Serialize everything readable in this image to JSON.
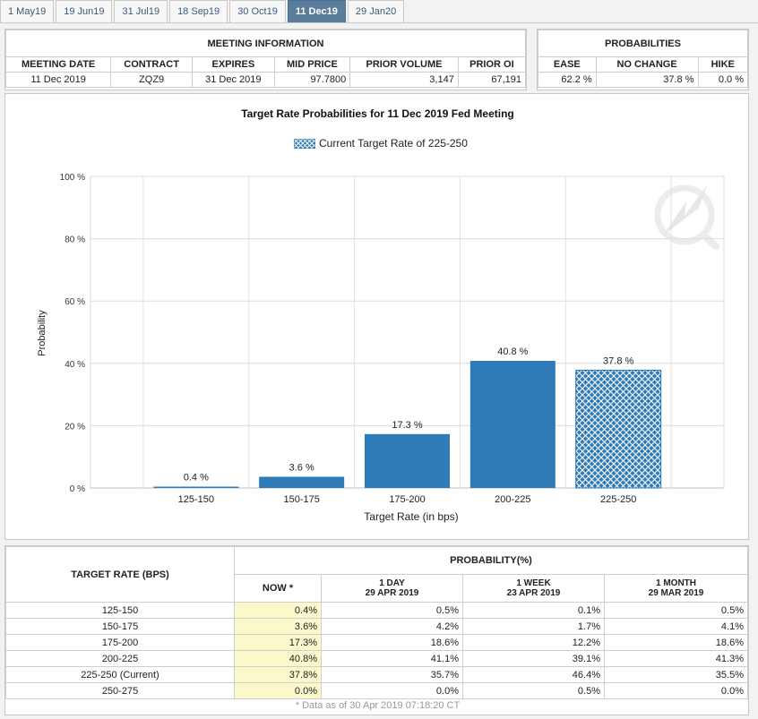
{
  "tabs": [
    "1 May19",
    "19 Jun19",
    "31 Jul19",
    "18 Sep19",
    "30 Oct19",
    "11 Dec19",
    "29 Jan20"
  ],
  "active_tab": "11 Dec19",
  "meeting_info": {
    "title": "MEETING INFORMATION",
    "headers": [
      "MEETING DATE",
      "CONTRACT",
      "EXPIRES",
      "MID PRICE",
      "PRIOR VOLUME",
      "PRIOR OI"
    ],
    "values": [
      "11 Dec 2019",
      "ZQZ9",
      "31 Dec 2019",
      "97.7800",
      "3,147",
      "67,191"
    ]
  },
  "probabilities": {
    "title": "PROBABILITIES",
    "headers": [
      "EASE",
      "NO CHANGE",
      "HIKE"
    ],
    "values": [
      "62.2 %",
      "37.8 %",
      "0.0 %"
    ]
  },
  "chart_data": {
    "type": "bar",
    "title": "Target Rate Probabilities for 11 Dec 2019 Fed Meeting",
    "legend": "Current Target Rate of 225-250",
    "xlabel": "Target Rate (in bps)",
    "ylabel": "Probability",
    "categories": [
      "125-150",
      "150-175",
      "175-200",
      "200-225",
      "225-250"
    ],
    "values": [
      0.4,
      3.6,
      17.3,
      40.8,
      37.8
    ],
    "labels": [
      "0.4 %",
      "3.6 %",
      "17.3 %",
      "40.8 %",
      "37.8 %"
    ],
    "ylim": [
      0,
      100
    ],
    "yticks": [
      "0 %",
      "20 %",
      "40 %",
      "60 %",
      "80 %",
      "100 %"
    ],
    "current_category": "225-250",
    "grid": true,
    "colors": {
      "bar": "#2f7bb8",
      "current": "#2f7bb8"
    }
  },
  "prob_table": {
    "title": "PROBABILITY(%)",
    "rate_header": "TARGET RATE (BPS)",
    "col_headers": [
      {
        "label": "NOW *",
        "sub": ""
      },
      {
        "label": "1 DAY",
        "sub": "29 APR 2019"
      },
      {
        "label": "1 WEEK",
        "sub": "23 APR 2019"
      },
      {
        "label": "1 MONTH",
        "sub": "29 MAR 2019"
      }
    ],
    "rows": [
      {
        "rate": "125-150",
        "now": "0.4%",
        "day": "0.5%",
        "week": "0.1%",
        "month": "0.5%"
      },
      {
        "rate": "150-175",
        "now": "3.6%",
        "day": "4.2%",
        "week": "1.7%",
        "month": "4.1%"
      },
      {
        "rate": "175-200",
        "now": "17.3%",
        "day": "18.6%",
        "week": "12.2%",
        "month": "18.6%"
      },
      {
        "rate": "200-225",
        "now": "40.8%",
        "day": "41.1%",
        "week": "39.1%",
        "month": "41.3%"
      },
      {
        "rate": "225-250 (Current)",
        "now": "37.8%",
        "day": "35.7%",
        "week": "46.4%",
        "month": "35.5%"
      },
      {
        "rate": "250-275",
        "now": "0.0%",
        "day": "0.0%",
        "week": "0.5%",
        "month": "0.0%"
      }
    ],
    "footer": "* Data as of 30 Apr 2019 07:18:20 CT"
  }
}
